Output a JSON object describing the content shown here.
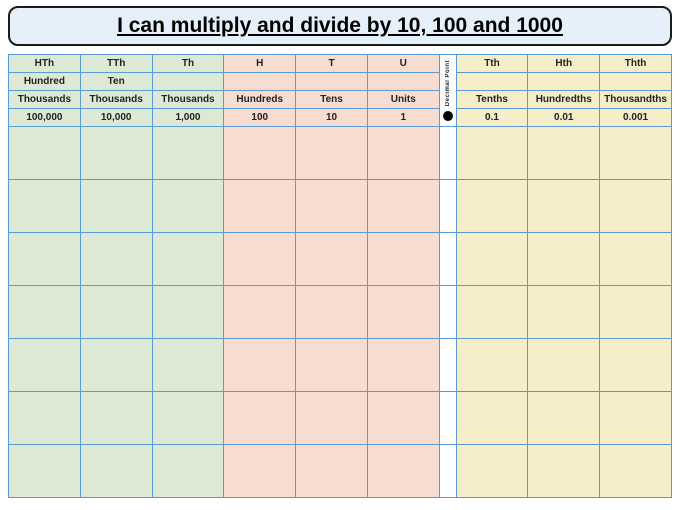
{
  "title": "I can multiply and divide by 10, 100 and 1000",
  "decimal_point_label": "Decimal Point",
  "columns": [
    {
      "short": "HTh",
      "name1": "Hundred",
      "name2": "Thousands",
      "value": "100,000",
      "group": "g1"
    },
    {
      "short": "TTh",
      "name1": "Ten",
      "name2": "Thousands",
      "value": "10,000",
      "group": "g1"
    },
    {
      "short": "Th",
      "name1": "",
      "name2": "Thousands",
      "value": "1,000",
      "group": "g1"
    },
    {
      "short": "H",
      "name1": "",
      "name2": "Hundreds",
      "value": "100",
      "group": "g2"
    },
    {
      "short": "T",
      "name1": "",
      "name2": "Tens",
      "value": "10",
      "group": "g2"
    },
    {
      "short": "U",
      "name1": "",
      "name2": "Units",
      "value": "1",
      "group": "g2"
    },
    {
      "short": "Tth",
      "name1": "",
      "name2": "Tenths",
      "value": "0.1",
      "group": "g3"
    },
    {
      "short": "Hth",
      "name1": "",
      "name2": "Hundredths",
      "value": "0.01",
      "group": "g3"
    },
    {
      "short": "Thth",
      "name1": "",
      "name2": "Thousandths",
      "value": "0.001",
      "group": "g3"
    }
  ],
  "blank_rows": 7,
  "colors": {
    "title_bg": "#e6f0fa",
    "border": "#5b9bd5",
    "group_thousands": "#dde9d4",
    "group_units": "#f7dcd2",
    "group_decimals": "#f5eec8"
  }
}
